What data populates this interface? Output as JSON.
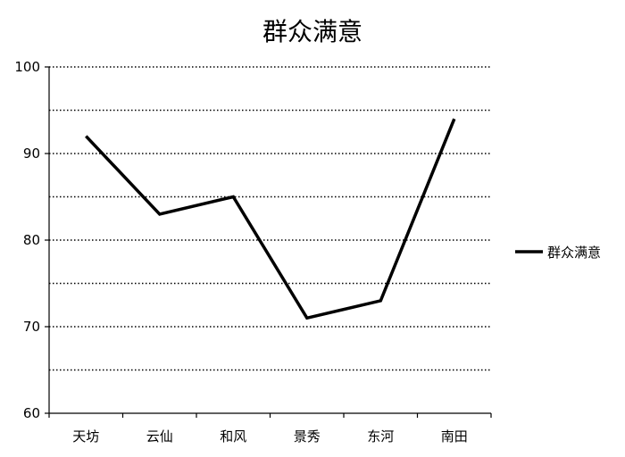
{
  "chart_data": {
    "type": "line",
    "title": "群众满意",
    "categories": [
      "天坊",
      "云仙",
      "和风",
      "景秀",
      "东河",
      "南田"
    ],
    "series": [
      {
        "name": "群众满意",
        "values": [
          92,
          83,
          85,
          71,
          73,
          94
        ]
      }
    ],
    "ylim": [
      60,
      100
    ],
    "yticks": [
      60,
      70,
      80,
      90,
      100
    ],
    "minor_y_step": 5,
    "grid": true,
    "grid_style": "dotted",
    "legend": "right",
    "colors": {
      "line": "#000000",
      "grid": "#000000",
      "background": "#ffffff"
    }
  }
}
